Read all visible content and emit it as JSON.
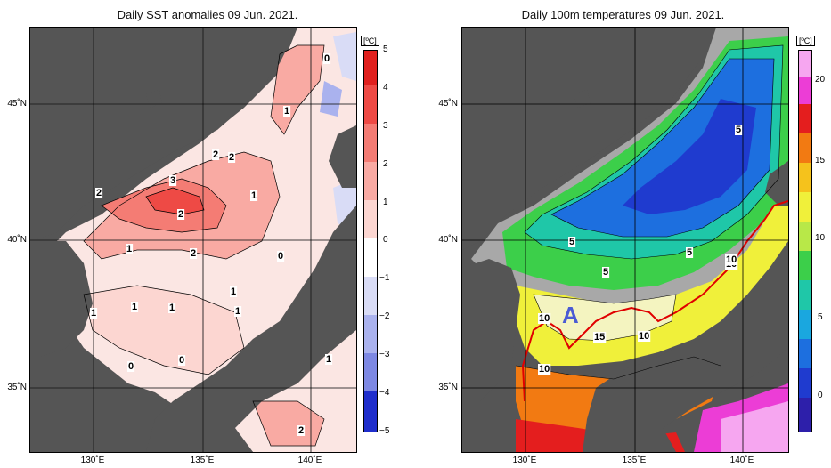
{
  "left": {
    "title": "Daily SST anomalies 09 Jun. 2021.",
    "unit": "[ºC]",
    "colorbar_ticks": [
      "5",
      "4",
      "3",
      "2",
      "1",
      "0",
      "−1",
      "−2",
      "−3",
      "−4",
      "−5"
    ],
    "colorbar_colors": [
      "#e0201e",
      "#ee4a45",
      "#f47c74",
      "#f9aaa3",
      "#fcd6d1",
      "#ffffff",
      "#d9dcf6",
      "#aab2ee",
      "#7d88e3",
      "#4c5ad8",
      "#1f2ecc"
    ],
    "contour_labels": [
      "0",
      "1",
      "2",
      "2",
      "3",
      "2",
      "1",
      "2",
      "2",
      "1",
      "1",
      "0",
      "1",
      "1",
      "1",
      "1",
      "0",
      "0",
      "1",
      "2"
    ]
  },
  "right": {
    "title": "Daily 100m temperatures 09 Jun. 2021.",
    "unit": "[ºC]",
    "colorbar_ticks": [
      "20",
      "15",
      "10",
      "5",
      "0"
    ],
    "colorbar_colors": [
      "#f6a6f0",
      "#ec3dd6",
      "#e41e1e",
      "#f27a12",
      "#f5c21c",
      "#f0f03a",
      "#b8e848",
      "#3ccf4a",
      "#1fc7a8",
      "#1aa7df",
      "#1d6fdf",
      "#1f3bcf",
      "#2d1faa"
    ],
    "contour_labels": [
      "5",
      "5",
      "5",
      "5",
      "10",
      "10",
      "10",
      "10",
      "15",
      "10"
    ],
    "area_label": "A"
  },
  "axes": {
    "lat_labels": [
      "45˚N",
      "40˚N",
      "35˚N"
    ],
    "lon_labels": [
      "130˚E",
      "135˚E",
      "140˚E"
    ]
  },
  "colors": {
    "land": "#555555",
    "shelf_gray": "#a8a8a8",
    "grid": "#ffffff",
    "isotherm_red": "#e00000",
    "area_label_color": "#4a5bd4"
  }
}
